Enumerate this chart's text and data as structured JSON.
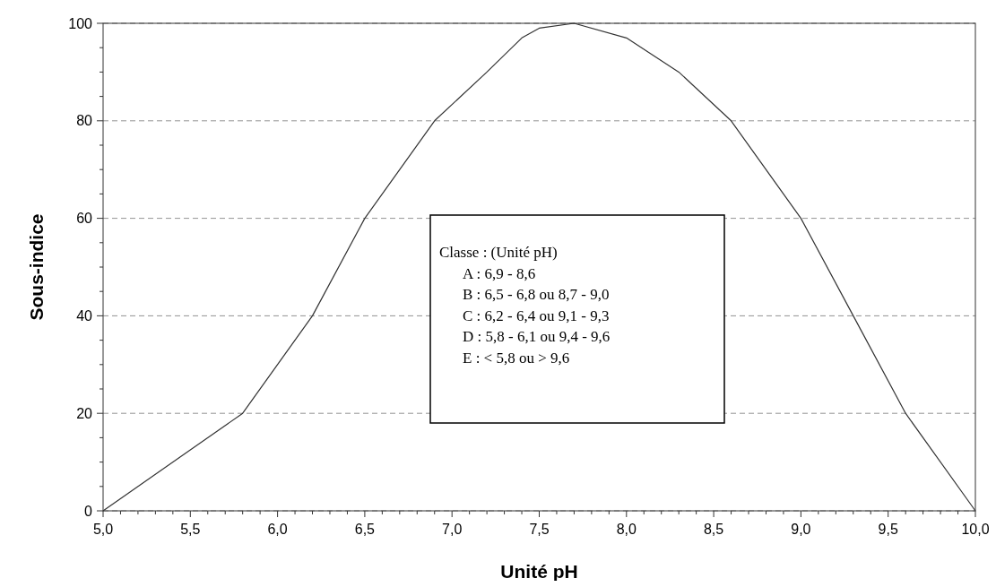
{
  "chart_data": {
    "type": "line",
    "xlabel": "Unité pH",
    "ylabel": "Sous-indice",
    "x": [
      5.0,
      5.8,
      6.2,
      6.5,
      6.9,
      7.2,
      7.4,
      7.5,
      7.7,
      8.0,
      8.3,
      8.6,
      9.0,
      9.3,
      9.6,
      10.0
    ],
    "series": [
      {
        "color": "#333333",
        "values": [
          0,
          20,
          40,
          60,
          80,
          90,
          97,
          99,
          100,
          97,
          90,
          80,
          60,
          40,
          20,
          0
        ]
      }
    ],
    "xlim": [
      5,
      10
    ],
    "xticks": [
      {
        "value": 5,
        "label": "5,0"
      },
      {
        "value": 5.5,
        "label": "5,5"
      },
      {
        "value": 6,
        "label": "6,0"
      },
      {
        "value": 6.5,
        "label": "6,5"
      },
      {
        "value": 7,
        "label": "7,0"
      },
      {
        "value": 7.5,
        "label": "7,5"
      },
      {
        "value": 8,
        "label": "8,0"
      },
      {
        "value": 8.5,
        "label": "8,5"
      },
      {
        "value": 9,
        "label": "9,0"
      },
      {
        "value": 9.5,
        "label": "9,5"
      },
      {
        "value": 10,
        "label": "10,0"
      }
    ],
    "ylim": [
      0,
      100
    ],
    "yticks": [
      0,
      20,
      40,
      60,
      80,
      100
    ],
    "grid": "y",
    "annotations": [
      "Classe : (Unité pH)",
      "A : 6,9 - 8,6",
      "B : 6,5 - 6,8 ou 8,7 - 9,0",
      "C : 6,2 - 6,4 ou 9,1 - 9,3",
      "D : 5,8 - 6,1 ou 9,4 - 9,6",
      "E : < 5,8 ou > 9,6"
    ]
  }
}
